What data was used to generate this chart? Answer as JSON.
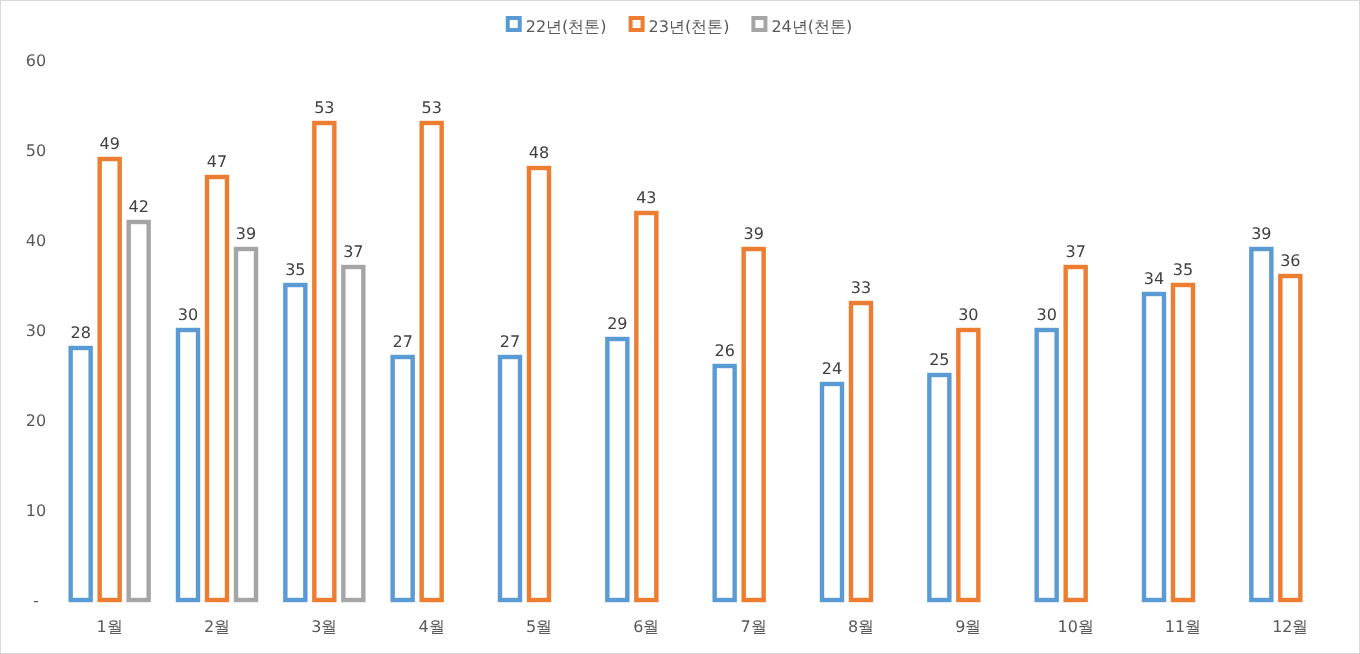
{
  "chart_data": {
    "type": "bar",
    "categories": [
      "1월",
      "2월",
      "3월",
      "4월",
      "5월",
      "6월",
      "7월",
      "8월",
      "9월",
      "10월",
      "11월",
      "12월"
    ],
    "series": [
      {
        "name": "22년(천톤)",
        "color": "#5b9bd5",
        "values": [
          28,
          30,
          35,
          27,
          27,
          29,
          26,
          24,
          25,
          30,
          34,
          39
        ]
      },
      {
        "name": "23년(천톤)",
        "color": "#ed7d31",
        "values": [
          49,
          47,
          53,
          53,
          48,
          43,
          39,
          33,
          30,
          37,
          35,
          36
        ]
      },
      {
        "name": "24년(천톤)",
        "color": "#a5a5a5",
        "values": [
          42,
          39,
          37,
          null,
          null,
          null,
          null,
          null,
          null,
          null,
          null,
          null
        ]
      }
    ],
    "ylim": [
      0,
      60
    ],
    "yticks": [
      {
        "value": 0,
        "label": "-"
      },
      10,
      20,
      30,
      40,
      50,
      60
    ],
    "data_labels": true,
    "legend": "top",
    "grid": false
  }
}
